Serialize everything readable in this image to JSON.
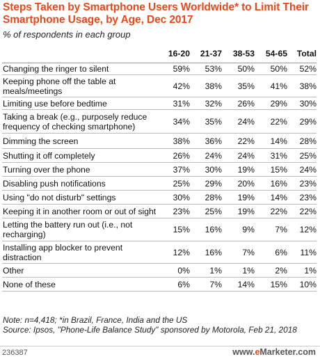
{
  "title": "Steps Taken by Smartphone Users Worldwide* to Limit Their Smartphone Usage, by Age, Dec 2017",
  "subtitle": "% of respondents in each group",
  "note": "Note: n=4,418; *in Brazil, France, India and the US",
  "source": "Source: Ipsos, \"Phone-Life Balance Study\" sponsored by Motorola, Feb 21, 2018",
  "footer_id": "236387",
  "brand_prefix": "www.",
  "brand_accent": "e",
  "brand_suffix": "Marketer.com",
  "chart_data": {
    "type": "table",
    "title": "Steps Taken by Smartphone Users Worldwide* to Limit Their Smartphone Usage, by Age, Dec 2017",
    "subtitle": "% of respondents in each group",
    "columns": [
      "16-20",
      "21-37",
      "38-53",
      "54-65",
      "Total"
    ],
    "rows": [
      {
        "label": "Changing the ringer to silent",
        "values": [
          "59%",
          "53%",
          "50%",
          "50%",
          "52%"
        ]
      },
      {
        "label": "Keeping phone off the table at meals/meetings",
        "values": [
          "42%",
          "38%",
          "35%",
          "41%",
          "38%"
        ]
      },
      {
        "label": "Limiting use before bedtime",
        "values": [
          "31%",
          "32%",
          "26%",
          "29%",
          "30%"
        ]
      },
      {
        "label": "Taking a break (e.g., purposely reduce frequency of checking smartphone)",
        "values": [
          "34%",
          "35%",
          "24%",
          "22%",
          "29%"
        ]
      },
      {
        "label": "Dimming the screen",
        "values": [
          "38%",
          "36%",
          "22%",
          "14%",
          "28%"
        ]
      },
      {
        "label": "Shutting it off completely",
        "values": [
          "26%",
          "24%",
          "24%",
          "31%",
          "25%"
        ]
      },
      {
        "label": "Turning over the phone",
        "values": [
          "37%",
          "30%",
          "19%",
          "15%",
          "24%"
        ]
      },
      {
        "label": "Disabling push notifications",
        "values": [
          "25%",
          "29%",
          "20%",
          "16%",
          "23%"
        ]
      },
      {
        "label": "Using \"do not disturb\" settings",
        "values": [
          "30%",
          "28%",
          "19%",
          "14%",
          "23%"
        ]
      },
      {
        "label": "Keeping it in another room or out of sight",
        "values": [
          "23%",
          "25%",
          "19%",
          "22%",
          "22%"
        ]
      },
      {
        "label": "Letting the battery run out (i.e., not recharging)",
        "values": [
          "15%",
          "16%",
          "9%",
          "7%",
          "12%"
        ]
      },
      {
        "label": "Installing app blocker to prevent distraction",
        "values": [
          "12%",
          "16%",
          "7%",
          "6%",
          "11%"
        ]
      },
      {
        "label": "Other",
        "values": [
          "0%",
          "1%",
          "1%",
          "2%",
          "1%"
        ]
      },
      {
        "label": "None of these",
        "values": [
          "6%",
          "7%",
          "14%",
          "15%",
          "10%"
        ]
      }
    ]
  }
}
